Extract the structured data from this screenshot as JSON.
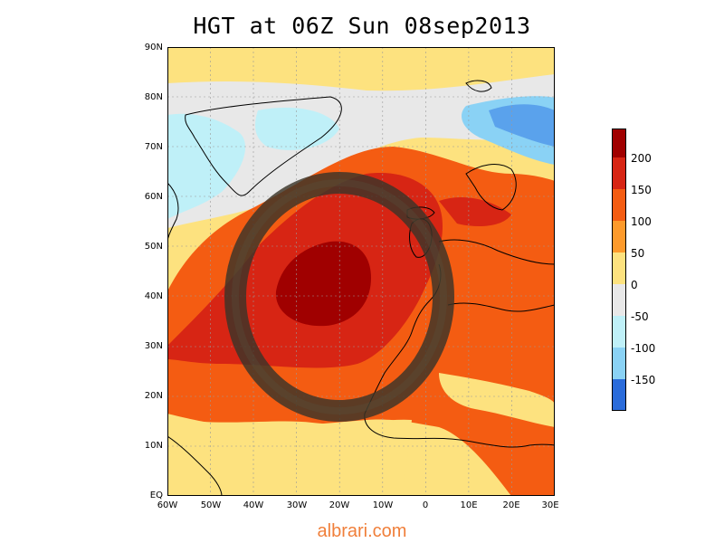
{
  "title": "HGT at 06Z Sun 08sep2013",
  "map": {
    "lat_labels": [
      "90N",
      "80N",
      "70N",
      "60N",
      "50N",
      "40N",
      "30N",
      "20N",
      "10N",
      "EQ"
    ],
    "lon_labels": [
      "60W",
      "50W",
      "40W",
      "30W",
      "20W",
      "10W",
      "0",
      "10E",
      "20E",
      "30E"
    ],
    "lat_range": [
      0,
      90
    ],
    "lon_range": [
      -60,
      30
    ],
    "grid": true
  },
  "colorbar": {
    "labels": [
      "200",
      "150",
      "100",
      "50",
      "0",
      "-50",
      "-100",
      "-150"
    ],
    "colors": [
      "#a00000",
      "#d72514",
      "#f45c12",
      "#fd9a2b",
      "#fde27f",
      "#e8e8e8",
      "#bff0f8",
      "#8ad2f5",
      "#5aa2ec",
      "#2a6bda"
    ]
  },
  "annotation": "dark ring highlighting high pressure over the North Atlantic",
  "watermark": "albrari.com"
}
